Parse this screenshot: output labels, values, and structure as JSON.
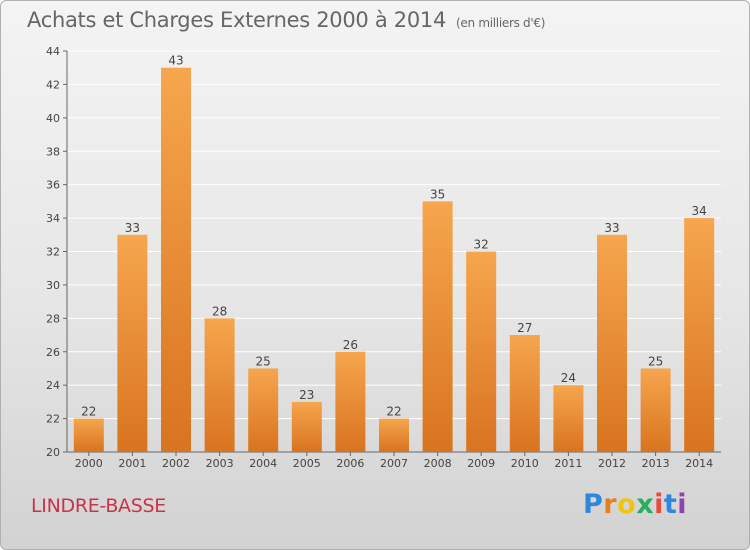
{
  "header": {
    "title": "Achats et Charges Externes 2000 à 2014",
    "subtitle": "(en milliers d'€)"
  },
  "footer": {
    "commune": "LINDRE-BASSE",
    "logo": {
      "letters": [
        "P",
        "r",
        "o",
        "x",
        "i",
        "t",
        "i"
      ],
      "colors": [
        "#2e86de",
        "#e67e22",
        "#f1c40f",
        "#27ae60",
        "#e74c3c",
        "#2e86de",
        "#8e44ad"
      ]
    }
  },
  "chart_data": {
    "type": "bar",
    "title": "Achats et Charges Externes 2000 à 2014",
    "subtitle": "(en milliers d'€)",
    "xlabel": "",
    "ylabel": "",
    "categories": [
      "2000",
      "2001",
      "2002",
      "2003",
      "2004",
      "2005",
      "2006",
      "2007",
      "2008",
      "2009",
      "2010",
      "2011",
      "2012",
      "2013",
      "2014"
    ],
    "values": [
      22,
      33,
      43,
      28,
      25,
      23,
      26,
      22,
      35,
      32,
      27,
      24,
      33,
      25,
      34
    ],
    "ylim": [
      20,
      44
    ],
    "yticks": [
      20,
      22,
      24,
      26,
      28,
      30,
      32,
      34,
      36,
      38,
      40,
      42,
      44
    ],
    "grid": true,
    "legend": "none",
    "bar_color_light": "#f6a64e",
    "bar_color_dark": "#d9731f"
  }
}
